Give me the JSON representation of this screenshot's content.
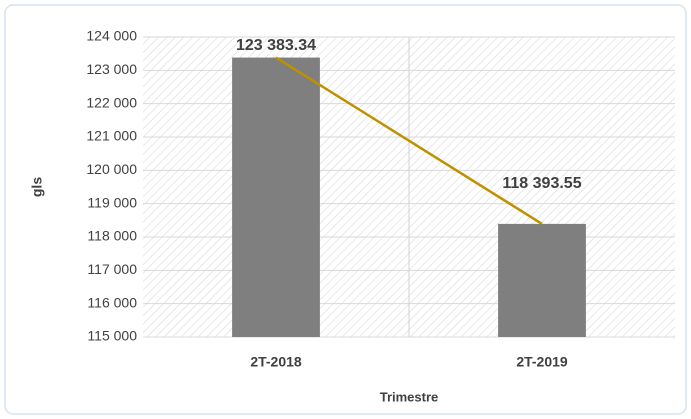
{
  "chart_data": {
    "type": "bar",
    "categories": [
      "2T-2018",
      "2T-2019"
    ],
    "values": [
      123383.34,
      118393.55
    ],
    "value_labels": [
      "123 383.34",
      "118 393.55"
    ],
    "color": "#7f7f7f",
    "line_color": "#bf9000",
    "y_label": "gls",
    "x_label": "Trimestre",
    "ylim": [
      115000,
      124000
    ],
    "yticks": [
      {
        "value": 115000,
        "label": "115 000"
      },
      {
        "value": 116000,
        "label": "116 000"
      },
      {
        "value": 117000,
        "label": "117 000"
      },
      {
        "value": 118000,
        "label": "118 000"
      },
      {
        "value": 119000,
        "label": "119 000"
      },
      {
        "value": 120000,
        "label": "120 000"
      },
      {
        "value": 121000,
        "label": "121 000"
      },
      {
        "value": 122000,
        "label": "122 000"
      },
      {
        "value": 123000,
        "label": "123 000"
      },
      {
        "value": 124000,
        "label": "124 000"
      }
    ],
    "grid": true
  }
}
